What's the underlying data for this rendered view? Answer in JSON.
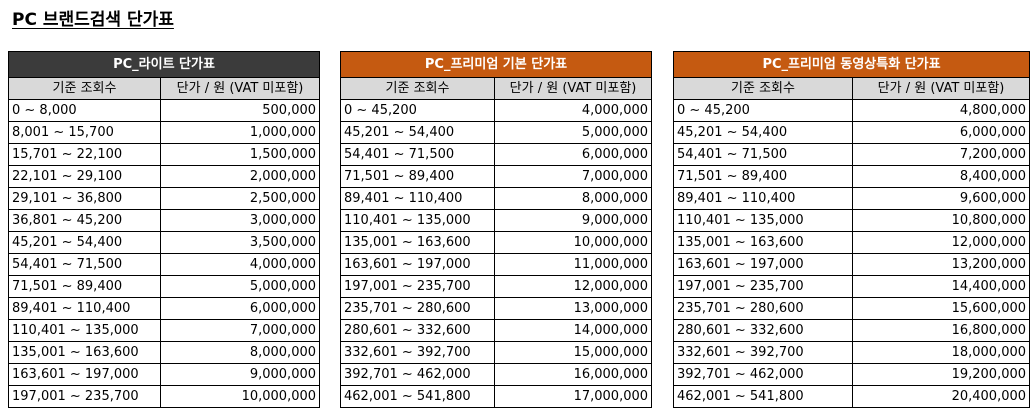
{
  "title": "PC 브랜드검색 단가표",
  "tables": [
    {
      "header": "PC_라이트 단가표",
      "header_color": "#3b3b3b",
      "col_range": "기준 조회수",
      "col_price": "단가 / 원 (VAT 미포함)",
      "rows": [
        {
          "range": "0 ~ 8,000",
          "price": "500,000"
        },
        {
          "range": "8,001 ~ 15,700",
          "price": "1,000,000"
        },
        {
          "range": "15,701 ~ 22,100",
          "price": "1,500,000"
        },
        {
          "range": "22,101 ~ 29,100",
          "price": "2,000,000"
        },
        {
          "range": "29,101 ~ 36,800",
          "price": "2,500,000"
        },
        {
          "range": "36,801 ~ 45,200",
          "price": "3,000,000"
        },
        {
          "range": "45,201 ~ 54,400",
          "price": "3,500,000"
        },
        {
          "range": "54,401 ~ 71,500",
          "price": "4,000,000"
        },
        {
          "range": "71,501 ~ 89,400",
          "price": "5,000,000"
        },
        {
          "range": "89,401 ~ 110,400",
          "price": "6,000,000"
        },
        {
          "range": "110,401 ~ 135,000",
          "price": "7,000,000"
        },
        {
          "range": "135,001 ~ 163,600",
          "price": "8,000,000"
        },
        {
          "range": "163,601 ~ 197,000",
          "price": "9,000,000"
        },
        {
          "range": "197,001 ~ 235,700",
          "price": "10,000,000"
        }
      ]
    },
    {
      "header": "PC_프리미엄 기본 단가표",
      "header_color": "#c55a11",
      "col_range": "기준 조회수",
      "col_price": "단가 / 원 (VAT 미포함)",
      "rows": [
        {
          "range": "0 ~ 45,200",
          "price": "4,000,000"
        },
        {
          "range": "45,201 ~ 54,400",
          "price": "5,000,000"
        },
        {
          "range": "54,401 ~ 71,500",
          "price": "6,000,000"
        },
        {
          "range": "71,501 ~ 89,400",
          "price": "7,000,000"
        },
        {
          "range": "89,401 ~ 110,400",
          "price": "8,000,000"
        },
        {
          "range": "110,401 ~ 135,000",
          "price": "9,000,000"
        },
        {
          "range": "135,001 ~ 163,600",
          "price": "10,000,000"
        },
        {
          "range": "163,601 ~ 197,000",
          "price": "11,000,000"
        },
        {
          "range": "197,001 ~ 235,700",
          "price": "12,000,000"
        },
        {
          "range": "235,701 ~ 280,600",
          "price": "13,000,000"
        },
        {
          "range": "280,601 ~ 332,600",
          "price": "14,000,000"
        },
        {
          "range": "332,601 ~ 392,700",
          "price": "15,000,000"
        },
        {
          "range": "392,701 ~ 462,000",
          "price": "16,000,000"
        },
        {
          "range": "462,001 ~ 541,800",
          "price": "17,000,000"
        }
      ]
    },
    {
      "header": "PC_프리미엄 동영상특화 단가표",
      "header_color": "#c55a11",
      "col_range": "기준 조회수",
      "col_price": "단가 / 원 (VAT 미포함)",
      "rows": [
        {
          "range": "0 ~ 45,200",
          "price": "4,800,000"
        },
        {
          "range": "45,201 ~ 54,400",
          "price": "6,000,000"
        },
        {
          "range": "54,401 ~ 71,500",
          "price": "7,200,000"
        },
        {
          "range": "71,501 ~ 89,400",
          "price": "8,400,000"
        },
        {
          "range": "89,401 ~ 110,400",
          "price": "9,600,000"
        },
        {
          "range": "110,401 ~ 135,000",
          "price": "10,800,000"
        },
        {
          "range": "135,001 ~ 163,600",
          "price": "12,000,000"
        },
        {
          "range": "163,601 ~ 197,000",
          "price": "13,200,000"
        },
        {
          "range": "197,001 ~ 235,700",
          "price": "14,400,000"
        },
        {
          "range": "235,701 ~ 280,600",
          "price": "15,600,000"
        },
        {
          "range": "280,601 ~ 332,600",
          "price": "16,800,000"
        },
        {
          "range": "332,601 ~ 392,700",
          "price": "18,000,000"
        },
        {
          "range": "392,701 ~ 462,000",
          "price": "19,200,000"
        },
        {
          "range": "462,001 ~ 541,800",
          "price": "20,400,000"
        }
      ]
    }
  ]
}
